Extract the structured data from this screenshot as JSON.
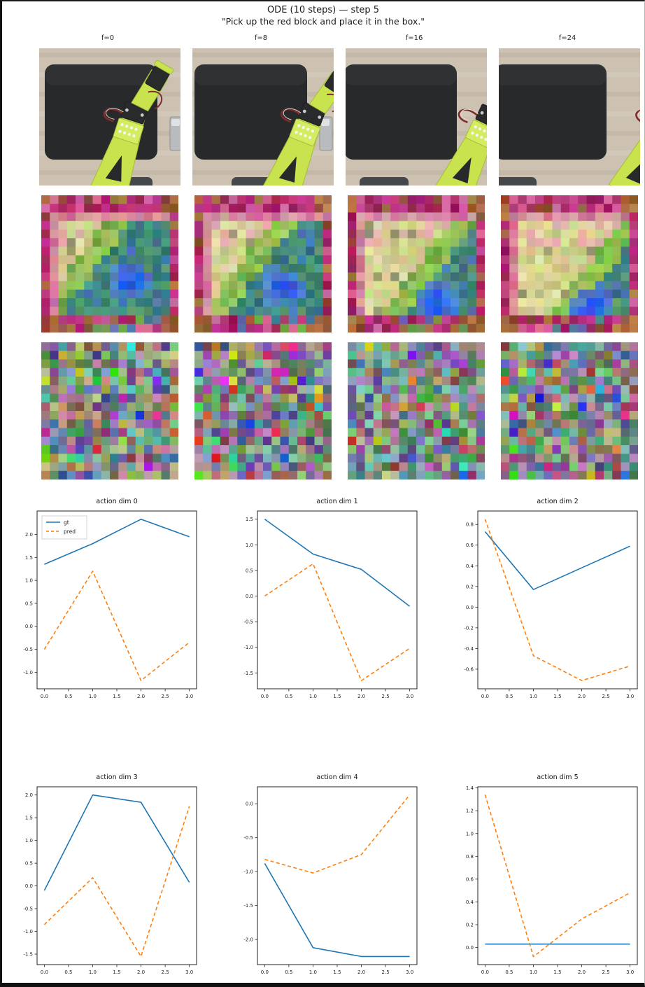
{
  "figure": {
    "title": "ODE (10 steps) — step 5",
    "subtitle": "\"Pick up the red block and place it in the box.\""
  },
  "frames": {
    "labels": [
      "f=0",
      "f=8",
      "f=16",
      "f=24"
    ]
  },
  "image_rows": {
    "photo": {
      "desc": "robot-arm-camera-frames",
      "desk_color": "#cdc2b1",
      "pad_color": "#27292b",
      "arm_color": "#c9e34f",
      "arm_shadow": "#a5bd37",
      "servo_color": "#282a2c",
      "wire_color": "#7d2d2d",
      "silver_color": "#b9bcbe"
    },
    "latent": {
      "desc": "vae-latent-frames",
      "grid": 16,
      "seeds": [
        101,
        202,
        303,
        404
      ],
      "palette": {
        "border_crimson": "#af266c",
        "border_pink": "#d1649c",
        "corner_brown": "#a5693e",
        "pale_yellow": "#ded794",
        "green": "#8cbe50",
        "teal": "#468c78",
        "blue": "#2d5fe1"
      }
    },
    "noise": {
      "desc": "gaussian-noise-frames",
      "grid": 16,
      "seeds": [
        111,
        222,
        333,
        444
      ]
    }
  },
  "chart_defaults": {
    "x": [
      0,
      1,
      2,
      3
    ],
    "xticks": [
      0.0,
      0.5,
      1.0,
      1.5,
      2.0,
      2.5,
      3.0
    ],
    "xlim": [
      -0.15,
      3.15
    ],
    "grid": false,
    "legend_labels": [
      "gt",
      "pred"
    ],
    "legend_position": "upper left",
    "colors": {
      "gt": "#1f77b4",
      "pred": "#ff7f0e"
    },
    "gt_style": "solid",
    "pred_style": "dashed"
  },
  "chart_data": [
    {
      "type": "line",
      "title": "action dim 0",
      "x": [
        0,
        1,
        2,
        3
      ],
      "series": [
        {
          "name": "gt",
          "values": [
            1.35,
            1.8,
            2.33,
            1.95
          ]
        },
        {
          "name": "pred",
          "values": [
            -0.5,
            1.2,
            -1.18,
            -0.35
          ]
        }
      ],
      "yticks": [
        -1.0,
        -0.5,
        0.0,
        0.5,
        1.0,
        1.5,
        2.0
      ],
      "ylim": [
        -1.36,
        2.51
      ],
      "legend": true
    },
    {
      "type": "line",
      "title": "action dim 1",
      "x": [
        0,
        1,
        2,
        3
      ],
      "series": [
        {
          "name": "gt",
          "values": [
            1.5,
            0.82,
            0.52,
            -0.2
          ]
        },
        {
          "name": "pred",
          "values": [
            0.0,
            0.63,
            -1.65,
            -1.02
          ]
        }
      ],
      "yticks": [
        -1.5,
        -1.0,
        -0.5,
        0.0,
        0.5,
        1.0,
        1.5
      ],
      "ylim": [
        -1.81,
        1.66
      ],
      "legend": false
    },
    {
      "type": "line",
      "title": "action dim 2",
      "x": [
        0,
        1,
        2,
        3
      ],
      "series": [
        {
          "name": "gt",
          "values": [
            0.73,
            0.17,
            0.38,
            0.59
          ]
        },
        {
          "name": "pred",
          "values": [
            0.85,
            -0.47,
            -0.71,
            -0.57
          ]
        }
      ],
      "yticks": [
        -0.6,
        -0.4,
        -0.2,
        0.0,
        0.2,
        0.4,
        0.6,
        0.8
      ],
      "ylim": [
        -0.79,
        0.93
      ],
      "legend": false
    },
    {
      "type": "line",
      "title": "action dim 3",
      "x": [
        0,
        1,
        2,
        3
      ],
      "series": [
        {
          "name": "gt",
          "values": [
            -0.1,
            2.0,
            1.84,
            0.08
          ]
        },
        {
          "name": "pred",
          "values": [
            -0.85,
            0.18,
            -1.55,
            1.75
          ]
        }
      ],
      "yticks": [
        -1.5,
        -1.0,
        -0.5,
        0.0,
        0.5,
        1.0,
        1.5,
        2.0
      ],
      "ylim": [
        -1.73,
        2.18
      ],
      "legend": false
    },
    {
      "type": "line",
      "title": "action dim 4",
      "x": [
        0,
        1,
        2,
        3
      ],
      "series": [
        {
          "name": "gt",
          "values": [
            -0.88,
            -2.12,
            -2.25,
            -2.25
          ]
        },
        {
          "name": "pred",
          "values": [
            -0.82,
            -1.02,
            -0.75,
            0.13
          ]
        }
      ],
      "yticks": [
        -2.0,
        -1.5,
        -1.0,
        -0.5,
        0.0
      ],
      "ylim": [
        -2.37,
        0.25
      ],
      "legend": false
    },
    {
      "type": "line",
      "title": "action dim 5",
      "x": [
        0,
        1,
        2,
        3
      ],
      "series": [
        {
          "name": "gt",
          "values": [
            0.03,
            0.03,
            0.03,
            0.03
          ]
        },
        {
          "name": "pred",
          "values": [
            1.34,
            -0.08,
            0.25,
            0.48
          ]
        }
      ],
      "yticks": [
        0.0,
        0.2,
        0.4,
        0.6,
        0.8,
        1.0,
        1.2,
        1.4
      ],
      "ylim": [
        -0.15,
        1.41
      ],
      "legend": false
    }
  ]
}
